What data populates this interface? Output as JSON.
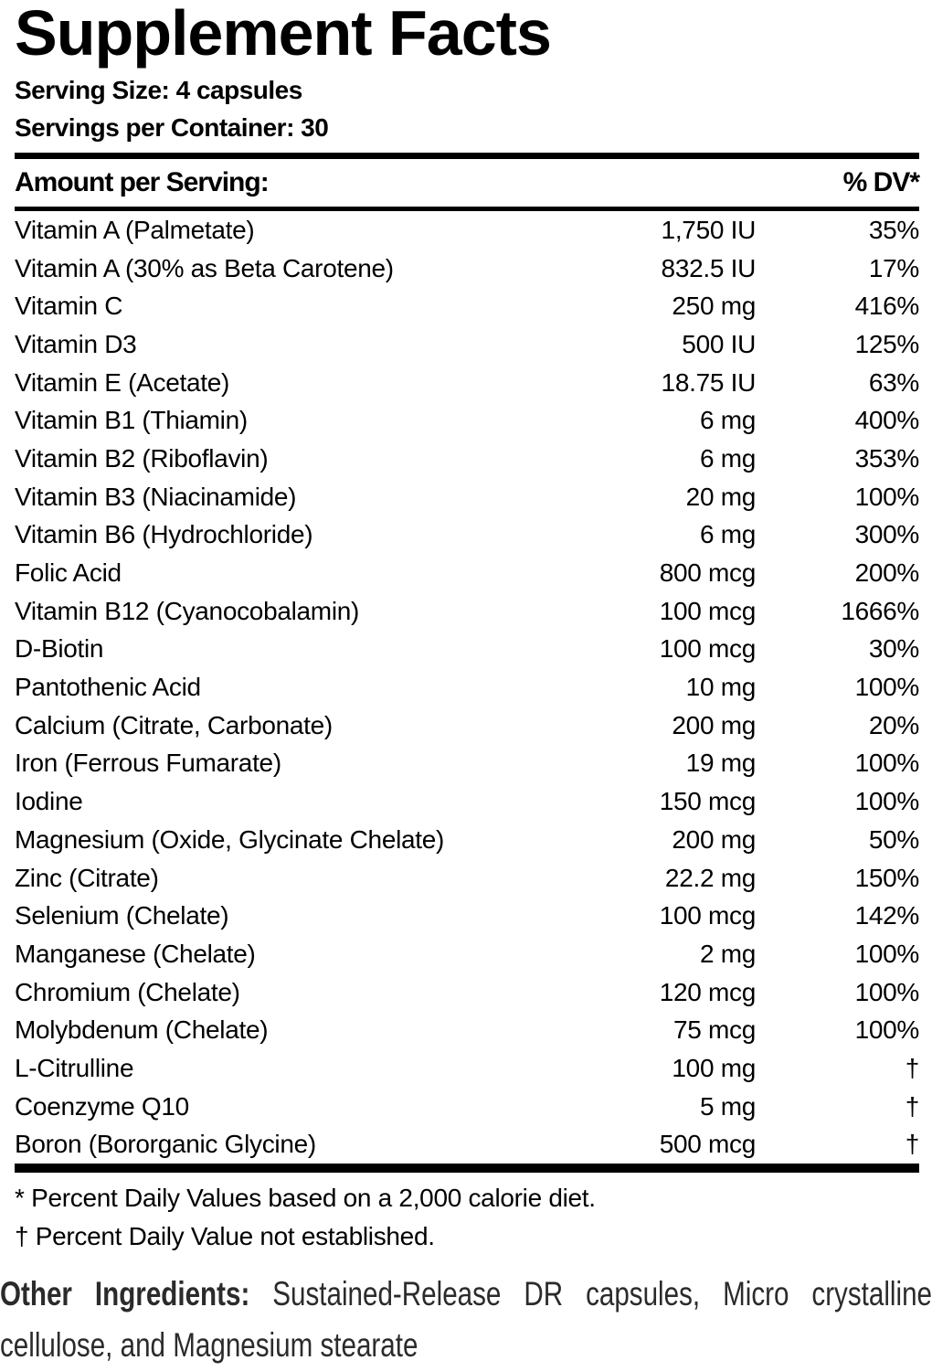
{
  "title": "Supplement Facts",
  "serving": {
    "size_label": "Serving Size: 4 capsules",
    "container_label": "Servings per Container: 30"
  },
  "table": {
    "header": {
      "amount": "Amount per Serving:",
      "dv": "% DV*"
    },
    "rows": [
      {
        "name": "Vitamin A (Palmetate)",
        "amount": "1,750 IU",
        "dv": "35%"
      },
      {
        "name": "Vitamin A (30% as Beta Carotene)",
        "amount": "832.5 IU",
        "dv": "17%"
      },
      {
        "name": "Vitamin C",
        "amount": "250 mg",
        "dv": "416%"
      },
      {
        "name": "Vitamin D3",
        "amount": "500 IU",
        "dv": "125%"
      },
      {
        "name": "Vitamin E (Acetate)",
        "amount": "18.75 IU",
        "dv": "63%"
      },
      {
        "name": "Vitamin B1 (Thiamin)",
        "amount": "6 mg",
        "dv": "400%"
      },
      {
        "name": "Vitamin B2 (Riboflavin)",
        "amount": "6 mg",
        "dv": "353%"
      },
      {
        "name": "Vitamin B3 (Niacinamide)",
        "amount": "20 mg",
        "dv": "100%"
      },
      {
        "name": "Vitamin B6 (Hydrochloride)",
        "amount": "6 mg",
        "dv": "300%"
      },
      {
        "name": "Folic Acid",
        "amount": "800 mcg",
        "dv": "200%"
      },
      {
        "name": "Vitamin B12 (Cyanocobalamin)",
        "amount": "100 mcg",
        "dv": "1666%"
      },
      {
        "name": "D-Biotin",
        "amount": "100 mcg",
        "dv": "30%"
      },
      {
        "name": "Pantothenic Acid",
        "amount": "10 mg",
        "dv": "100%"
      },
      {
        "name": "Calcium (Citrate, Carbonate)",
        "amount": "200 mg",
        "dv": "20%"
      },
      {
        "name": "Iron (Ferrous Fumarate)",
        "amount": "19 mg",
        "dv": "100%"
      },
      {
        "name": "Iodine",
        "amount": "150 mcg",
        "dv": "100%"
      },
      {
        "name": "Magnesium (Oxide, Glycinate Chelate)",
        "amount": "200 mg",
        "dv": "50%"
      },
      {
        "name": "Zinc (Citrate)",
        "amount": "22.2 mg",
        "dv": "150%"
      },
      {
        "name": "Selenium (Chelate)",
        "amount": "100 mcg",
        "dv": "142%"
      },
      {
        "name": "Manganese (Chelate)",
        "amount": "2 mg",
        "dv": "100%"
      },
      {
        "name": "Chromium (Chelate)",
        "amount": "120 mcg",
        "dv": "100%"
      },
      {
        "name": "Molybdenum (Chelate)",
        "amount": "75 mcg",
        "dv": "100%"
      },
      {
        "name": "L-Citrulline",
        "amount": "100 mg",
        "dv": "†"
      },
      {
        "name": "Coenzyme Q10",
        "amount": "5 mg",
        "dv": "†"
      },
      {
        "name": "Boron (Bororganic Glycine)",
        "amount": "500 mcg",
        "dv": "†"
      }
    ]
  },
  "footnotes": [
    "* Percent Daily Values based on a 2,000 calorie diet.",
    "† Percent Daily Value not established."
  ],
  "other_ingredients": {
    "label": "Other Ingredients:",
    "line1_rest": "Sustained-Release DR capsules, Micro crystalline",
    "line2": "cellulose, and Magnesium stearate"
  },
  "colors": {
    "background": "#ffffff",
    "text": "#000000",
    "other_ingredients_text": "#2b2b2b",
    "rule": "#000000"
  }
}
